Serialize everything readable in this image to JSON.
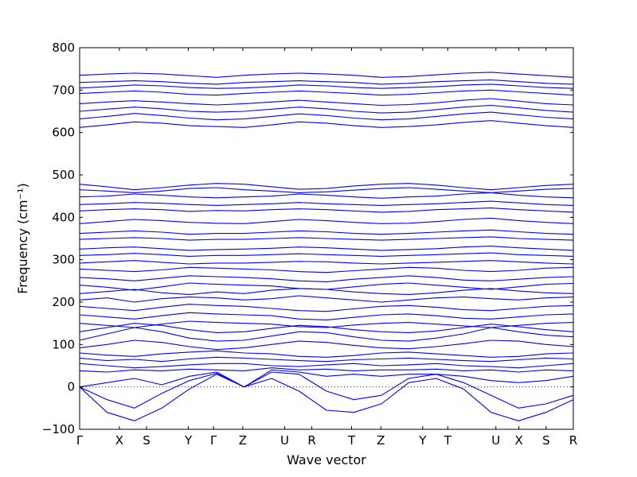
{
  "chart_data": {
    "type": "line",
    "title": "",
    "xlabel": "Wave vector",
    "ylabel": "Frequency (cm⁻¹)",
    "ylim": [
      -100,
      800
    ],
    "yticks": [
      -100,
      0,
      100,
      200,
      300,
      400,
      500,
      600,
      700,
      800
    ],
    "grid": false,
    "zero_line": {
      "y": 0,
      "style": "dotted"
    },
    "band_color": "#0000ff",
    "kpoints": [
      {
        "label": "Γ",
        "x": 0
      },
      {
        "label": "X",
        "x": 0.95
      },
      {
        "label": "S",
        "x": 1.6
      },
      {
        "label": "Y",
        "x": 2.6
      },
      {
        "label": "Γ",
        "x": 3.2
      },
      {
        "label": "Z",
        "x": 3.9
      },
      {
        "label": "U",
        "x": 4.9
      },
      {
        "label": "R",
        "x": 5.55
      },
      {
        "label": "T",
        "x": 6.5
      },
      {
        "label": "Z",
        "x": 7.2
      },
      {
        "label": "Y",
        "x": 8.2
      },
      {
        "label": "T",
        "x": 8.8
      },
      {
        "label": "U",
        "x": 9.95
      },
      {
        "label": "X",
        "x": 10.5
      },
      {
        "label": "S",
        "x": 11.15
      },
      {
        "label": "R",
        "x": 11.8
      }
    ],
    "series": [
      {
        "values": [
          0,
          -60,
          -80,
          -50,
          -5,
          30,
          0,
          20,
          -10,
          -55,
          -60,
          -40,
          10,
          20,
          -5,
          -60,
          -80,
          -60,
          -30
        ]
      },
      {
        "values": [
          0,
          -30,
          -50,
          -15,
          15,
          32,
          0,
          35,
          30,
          -10,
          -30,
          -20,
          20,
          30,
          10,
          -20,
          -50,
          -40,
          -20
        ]
      },
      {
        "values": [
          0,
          10,
          20,
          5,
          25,
          35,
          0,
          40,
          35,
          25,
          30,
          25,
          30,
          30,
          25,
          15,
          10,
          15,
          25
        ]
      },
      {
        "values": [
          38,
          35,
          40,
          38,
          42,
          40,
          38,
          45,
          40,
          42,
          38,
          40,
          40,
          42,
          38,
          40,
          35,
          40,
          38
        ]
      },
      {
        "values": [
          55,
          50,
          45,
          48,
          52,
          55,
          55,
          50,
          48,
          52,
          55,
          50,
          52,
          55,
          50,
          48,
          45,
          50,
          55
        ]
      },
      {
        "values": [
          68,
          62,
          65,
          60,
          66,
          70,
          68,
          65,
          62,
          60,
          64,
          66,
          68,
          65,
          62,
          60,
          64,
          68,
          66
        ]
      },
      {
        "values": [
          80,
          75,
          72,
          78,
          82,
          85,
          80,
          78,
          72,
          70,
          74,
          80,
          82,
          78,
          74,
          70,
          72,
          78,
          80
        ]
      },
      {
        "values": [
          92,
          100,
          110,
          105,
          95,
          88,
          92,
          100,
          108,
          105,
          98,
          92,
          90,
          95,
          102,
          110,
          108,
          100,
          95
        ]
      },
      {
        "values": [
          110,
          125,
          140,
          130,
          115,
          108,
          110,
          120,
          130,
          128,
          118,
          110,
          108,
          115,
          125,
          140,
          130,
          122,
          118
        ]
      },
      {
        "values": [
          130,
          140,
          150,
          145,
          135,
          128,
          130,
          138,
          145,
          142,
          135,
          130,
          128,
          132,
          140,
          148,
          142,
          135,
          130
        ]
      },
      {
        "values": [
          150,
          145,
          140,
          148,
          155,
          152,
          150,
          148,
          142,
          140,
          146,
          150,
          152,
          148,
          144,
          140,
          145,
          150,
          152
        ]
      },
      {
        "values": [
          170,
          165,
          160,
          168,
          175,
          172,
          170,
          168,
          160,
          158,
          164,
          170,
          172,
          168,
          162,
          160,
          165,
          170,
          172
        ]
      },
      {
        "values": [
          190,
          185,
          180,
          188,
          195,
          192,
          190,
          185,
          180,
          178,
          184,
          190,
          192,
          188,
          182,
          180,
          185,
          190,
          192
        ]
      },
      {
        "values": [
          205,
          210,
          200,
          208,
          212,
          210,
          205,
          208,
          215,
          210,
          205,
          200,
          205,
          210,
          212,
          208,
          205,
          210,
          212
        ]
      },
      {
        "values": [
          220,
          225,
          230,
          222,
          218,
          224,
          220,
          228,
          232,
          230,
          224,
          220,
          218,
          222,
          228,
          232,
          226,
          222,
          220
        ]
      },
      {
        "values": [
          240,
          235,
          228,
          236,
          245,
          242,
          240,
          238,
          232,
          230,
          236,
          242,
          245,
          240,
          235,
          230,
          236,
          242,
          244
        ]
      },
      {
        "values": [
          258,
          255,
          250,
          256,
          262,
          260,
          258,
          255,
          250,
          248,
          254,
          258,
          262,
          258,
          252,
          250,
          254,
          258,
          260
        ]
      },
      {
        "values": [
          278,
          275,
          272,
          276,
          282,
          280,
          278,
          276,
          272,
          270,
          274,
          278,
          282,
          280,
          275,
          272,
          275,
          280,
          282
        ]
      },
      {
        "values": [
          292,
          295,
          298,
          294,
          290,
          292,
          292,
          294,
          296,
          295,
          292,
          290,
          292,
          294,
          296,
          298,
          295,
          292,
          290
        ]
      },
      {
        "values": [
          310,
          312,
          315,
          312,
          308,
          310,
          310,
          312,
          314,
          312,
          310,
          308,
          310,
          312,
          314,
          316,
          312,
          310,
          308
        ]
      },
      {
        "values": [
          325,
          328,
          330,
          326,
          322,
          324,
          325,
          327,
          330,
          328,
          325,
          322,
          324,
          326,
          330,
          332,
          328,
          325,
          322
        ]
      },
      {
        "values": [
          348,
          350,
          352,
          350,
          346,
          348,
          348,
          350,
          352,
          350,
          348,
          346,
          348,
          350,
          352,
          354,
          350,
          348,
          346
        ]
      },
      {
        "values": [
          362,
          365,
          368,
          365,
          360,
          362,
          362,
          365,
          368,
          366,
          362,
          360,
          362,
          365,
          368,
          370,
          366,
          362,
          360
        ]
      },
      {
        "values": [
          385,
          390,
          395,
          392,
          388,
          386,
          385,
          390,
          395,
          392,
          388,
          385,
          386,
          390,
          395,
          398,
          392,
          388,
          385
        ]
      },
      {
        "values": [
          415,
          418,
          420,
          418,
          414,
          416,
          415,
          418,
          420,
          418,
          415,
          412,
          414,
          418,
          420,
          422,
          418,
          415,
          412
        ]
      },
      {
        "values": [
          430,
          432,
          435,
          433,
          430,
          428,
          430,
          432,
          435,
          432,
          430,
          428,
          430,
          432,
          435,
          438,
          434,
          430,
          428
        ]
      },
      {
        "values": [
          448,
          450,
          455,
          452,
          448,
          446,
          448,
          450,
          455,
          452,
          448,
          445,
          448,
          450,
          455,
          458,
          452,
          448,
          446
        ]
      },
      {
        "values": [
          465,
          462,
          458,
          462,
          468,
          470,
          465,
          462,
          458,
          460,
          464,
          468,
          470,
          466,
          462,
          458,
          462,
          466,
          468
        ]
      },
      {
        "values": [
          478,
          472,
          465,
          470,
          476,
          480,
          478,
          472,
          466,
          468,
          474,
          478,
          480,
          476,
          470,
          465,
          470,
          475,
          478
        ]
      },
      {
        "values": [
          612,
          618,
          625,
          622,
          616,
          614,
          612,
          618,
          625,
          622,
          616,
          612,
          614,
          618,
          624,
          628,
          622,
          616,
          612
        ]
      },
      {
        "values": [
          632,
          638,
          645,
          640,
          634,
          630,
          632,
          638,
          644,
          640,
          634,
          630,
          632,
          638,
          644,
          648,
          642,
          636,
          632
        ]
      },
      {
        "values": [
          650,
          655,
          660,
          656,
          650,
          648,
          650,
          655,
          660,
          656,
          650,
          646,
          648,
          654,
          660,
          664,
          658,
          652,
          648
        ]
      },
      {
        "values": [
          668,
          672,
          675,
          672,
          668,
          665,
          668,
          672,
          676,
          672,
          668,
          664,
          666,
          670,
          676,
          680,
          674,
          668,
          665
        ]
      },
      {
        "values": [
          692,
          695,
          698,
          695,
          690,
          688,
          692,
          695,
          698,
          695,
          692,
          688,
          690,
          694,
          698,
          700,
          696,
          692,
          688
        ]
      },
      {
        "values": [
          705,
          708,
          712,
          710,
          706,
          704,
          705,
          708,
          712,
          710,
          706,
          704,
          706,
          708,
          712,
          714,
          710,
          706,
          704
        ]
      },
      {
        "values": [
          718,
          720,
          722,
          720,
          716,
          714,
          718,
          720,
          722,
          720,
          718,
          714,
          716,
          720,
          722,
          724,
          720,
          716,
          714
        ]
      },
      {
        "values": [
          735,
          738,
          740,
          738,
          734,
          730,
          735,
          738,
          740,
          738,
          735,
          730,
          732,
          736,
          740,
          742,
          738,
          734,
          730
        ]
      }
    ]
  }
}
